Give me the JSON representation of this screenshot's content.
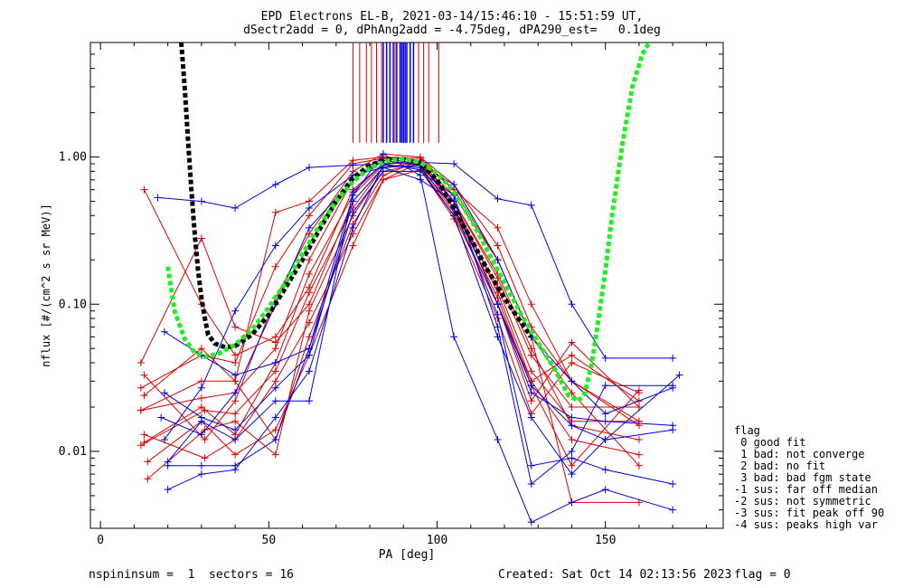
{
  "title": {
    "line1": "EPD Electrons EL-B, 2021-03-14/15:46:10 - 15:51:59 UT,",
    "line2": "dSectr2add = 0, dPhAng2add = -4.75deg, dPA290_est=   0.1deg"
  },
  "footer": {
    "left": "nspininsum =  1  sectors = 16",
    "created": "Created: Sat Oct 14 02:13:56 2023",
    "flag": "flag = 0"
  },
  "legend": {
    "title": "flag",
    "items": [
      " 0 good fit",
      " 1 bad: not converge",
      " 2 bad: no fit",
      " 3 bad: bad fgm state",
      "-1 sus: far off median",
      "-2 sus: not symmetric",
      "-3 sus: fit peak off 90",
      "-4 sus: peaks high var"
    ]
  },
  "colors": {
    "red": "#e00000",
    "blue": "#0000e0",
    "black": "#000000",
    "green": "#22ee22"
  },
  "chart_data": {
    "type": "line",
    "xlabel": "PA [deg]",
    "ylabel": "nflux [#/(cm^2 s sr MeV)]",
    "xlim": [
      -3,
      185
    ],
    "ylim": [
      0.003,
      6.0
    ],
    "yscale": "log",
    "xticks": [
      0,
      50,
      100,
      150
    ],
    "xtick_labels": [
      "0",
      "50",
      "100",
      "150"
    ],
    "yticks": [
      0.01,
      0.1,
      1.0
    ],
    "ytick_labels": [
      "0.01",
      "0.10",
      "1.00"
    ],
    "vertical_markers": {
      "red": [
        75,
        77,
        79,
        80.5,
        82,
        83.5,
        85,
        86,
        87.5,
        94.5,
        96,
        97.5,
        100.5
      ],
      "blue": [
        84,
        85,
        86,
        87,
        88,
        89,
        89.5,
        90,
        90.5,
        91,
        92,
        93
      ],
      "ymin": 1.25
    },
    "series": [
      {
        "color": "red",
        "x": [
          12,
          31,
          40,
          52,
          62,
          75,
          84,
          95,
          105,
          118,
          128,
          140,
          160
        ],
        "y": [
          0.011,
          0.019,
          0.018,
          0.035,
          0.12,
          0.45,
          0.85,
          0.92,
          0.45,
          0.13,
          0.035,
          0.016,
          0.016
        ]
      },
      {
        "color": "red",
        "x": [
          13,
          30,
          40,
          52,
          62,
          75,
          84,
          95,
          105,
          118,
          128,
          140,
          160
        ],
        "y": [
          0.6,
          0.1,
          0.045,
          0.06,
          0.13,
          0.6,
          0.9,
          0.95,
          0.5,
          0.12,
          0.03,
          0.012,
          0.0095
        ]
      },
      {
        "color": "red",
        "x": [
          12,
          30,
          40,
          52,
          62,
          75,
          84,
          95,
          105,
          118,
          128,
          140,
          160
        ],
        "y": [
          0.04,
          0.28,
          0.07,
          0.055,
          0.1,
          0.5,
          0.85,
          0.88,
          0.42,
          0.1,
          0.03,
          0.045,
          0.022
        ]
      },
      {
        "color": "red",
        "x": [
          13,
          30,
          40,
          52,
          62,
          75,
          84,
          95,
          105,
          118,
          128,
          140,
          160
        ],
        "y": [
          0.024,
          0.05,
          0.03,
          0.012,
          0.06,
          0.35,
          0.75,
          0.95,
          0.5,
          0.15,
          0.045,
          0.02,
          0.02
        ]
      },
      {
        "color": "red",
        "x": [
          14,
          31,
          40,
          52,
          62,
          75,
          84,
          95,
          105,
          118,
          128,
          140,
          160
        ],
        "y": [
          0.0065,
          0.014,
          0.016,
          0.0095,
          0.09,
          0.4,
          0.8,
          0.9,
          0.55,
          0.2,
          0.06,
          0.0045,
          0.0045
        ]
      },
      {
        "color": "red",
        "x": [
          12,
          30,
          40,
          52,
          62,
          75,
          84,
          95,
          105,
          118,
          128,
          140,
          160
        ],
        "y": [
          0.019,
          0.023,
          0.025,
          0.05,
          0.2,
          0.7,
          1.0,
          0.98,
          0.6,
          0.2,
          0.06,
          0.025,
          0.008
        ]
      },
      {
        "color": "red",
        "x": [
          13,
          31,
          40,
          52,
          62,
          75,
          84,
          95,
          105,
          118,
          128,
          140,
          160
        ],
        "y": [
          0.033,
          0.012,
          0.022,
          0.11,
          0.3,
          0.8,
          1.05,
          1.0,
          0.65,
          0.25,
          0.07,
          0.03,
          0.015
        ]
      },
      {
        "color": "red",
        "x": [
          14,
          30,
          40,
          52,
          62,
          75,
          84,
          95,
          105,
          118,
          128,
          140,
          160
        ],
        "y": [
          0.0085,
          0.016,
          0.0095,
          0.014,
          0.045,
          0.25,
          0.7,
          0.92,
          0.45,
          0.11,
          0.028,
          0.008,
          0.026
        ]
      },
      {
        "color": "red",
        "x": [
          12,
          30,
          40,
          52,
          62,
          75,
          84,
          95,
          105,
          118,
          128,
          140,
          160
        ],
        "y": [
          0.027,
          0.045,
          0.04,
          0.18,
          0.4,
          0.9,
          0.98,
          0.9,
          0.5,
          0.16,
          0.05,
          0.015,
          0.012
        ]
      },
      {
        "color": "red",
        "x": [
          13,
          30,
          40,
          52,
          62,
          75,
          84,
          95,
          105,
          118,
          128,
          140,
          160
        ],
        "y": [
          0.0115,
          0.02,
          0.013,
          0.04,
          0.16,
          0.55,
          0.88,
          0.85,
          0.4,
          0.1,
          0.022,
          0.055,
          0.02
        ]
      },
      {
        "color": "red",
        "x": [
          12,
          30,
          40,
          52,
          62,
          75,
          84,
          95,
          105,
          118,
          128,
          140,
          160
        ],
        "y": [
          0.019,
          0.03,
          0.03,
          0.42,
          0.5,
          0.95,
          1.0,
          0.95,
          0.6,
          0.33,
          0.1,
          0.03,
          0.016
        ]
      },
      {
        "color": "red",
        "x": [
          13,
          31,
          40,
          52,
          62,
          75,
          84,
          95,
          105,
          118,
          128,
          140,
          160
        ],
        "y": [
          0.013,
          0.009,
          0.012,
          0.03,
          0.075,
          0.3,
          0.7,
          0.82,
          0.38,
          0.08,
          0.018,
          0.04,
          0.025
        ]
      },
      {
        "color": "blue",
        "x": [
          17,
          30,
          40,
          52,
          62,
          75,
          84,
          95,
          105,
          118,
          128,
          140,
          150,
          170
        ],
        "y": [
          0.53,
          0.5,
          0.45,
          0.65,
          0.85,
          0.88,
          0.9,
          0.92,
          0.9,
          0.52,
          0.47,
          0.1,
          0.043,
          0.043
        ]
      },
      {
        "color": "blue",
        "x": [
          19,
          30,
          40,
          52,
          62,
          75,
          84,
          95,
          105,
          118,
          128,
          140,
          150,
          170
        ],
        "y": [
          0.065,
          0.045,
          0.033,
          0.04,
          0.05,
          0.42,
          0.8,
          0.8,
          0.55,
          0.07,
          0.006,
          0.01,
          0.028,
          0.028
        ]
      },
      {
        "color": "blue",
        "x": [
          19,
          30,
          40,
          52,
          62,
          75,
          84,
          95,
          105,
          118,
          128,
          140,
          150,
          170
        ],
        "y": [
          0.025,
          0.017,
          0.014,
          0.027,
          0.045,
          0.5,
          0.85,
          0.7,
          0.5,
          0.1,
          0.025,
          0.017,
          0.016,
          0.015
        ]
      },
      {
        "color": "blue",
        "x": [
          20,
          30,
          40,
          52,
          62,
          75,
          84,
          95,
          105,
          118,
          128,
          140,
          150,
          170
        ],
        "y": [
          0.0085,
          0.016,
          0.012,
          0.022,
          0.022,
          0.58,
          0.9,
          0.82,
          0.4,
          0.06,
          0.017,
          0.007,
          0.012,
          0.014
        ]
      },
      {
        "color": "blue",
        "x": [
          20,
          30,
          40,
          52,
          62,
          75,
          84,
          95,
          105,
          118,
          128,
          140,
          150,
          170
        ],
        "y": [
          0.0055,
          0.007,
          0.0075,
          0.017,
          0.035,
          0.33,
          0.88,
          0.85,
          0.45,
          0.085,
          0.008,
          0.009,
          0.0075,
          0.006
        ]
      },
      {
        "color": "blue",
        "x": [
          20,
          30,
          40,
          52,
          62,
          75,
          84,
          95,
          105,
          118,
          128,
          140,
          150,
          170
        ],
        "y": [
          0.008,
          0.008,
          0.008,
          0.012,
          0.05,
          0.55,
          1.05,
          0.75,
          0.06,
          0.012,
          0.0033,
          0.0045,
          0.0055,
          0.004
        ]
      },
      {
        "color": "blue",
        "x": [
          18,
          30,
          40,
          52,
          62,
          75,
          84,
          95,
          105,
          118,
          128,
          140,
          150,
          172
        ],
        "y": [
          0.017,
          0.013,
          0.025,
          0.1,
          0.33,
          0.7,
          0.95,
          0.88,
          0.5,
          0.1,
          0.028,
          0.015,
          0.012,
          0.033
        ]
      },
      {
        "color": "blue",
        "x": [
          19,
          30,
          40,
          52,
          62,
          75,
          84,
          95,
          105,
          118,
          128,
          140,
          150,
          170
        ],
        "y": [
          0.012,
          0.027,
          0.09,
          0.25,
          0.45,
          0.75,
          0.85,
          0.88,
          0.65,
          0.2,
          0.06,
          0.03,
          0.018,
          0.027
        ]
      }
    ],
    "median_curve": {
      "color": "black",
      "style": "dashed",
      "x": [
        24,
        25,
        26,
        27,
        28,
        29,
        30,
        31,
        32,
        34,
        37,
        40,
        45,
        50,
        55,
        60,
        65,
        70,
        75,
        80,
        85,
        90,
        95,
        100,
        105,
        110,
        115,
        120,
        125,
        128
      ],
      "y": [
        6.0,
        3.0,
        1.3,
        0.6,
        0.3,
        0.17,
        0.11,
        0.08,
        0.062,
        0.054,
        0.051,
        0.052,
        0.062,
        0.085,
        0.13,
        0.2,
        0.32,
        0.5,
        0.72,
        0.88,
        0.96,
        0.97,
        0.9,
        0.7,
        0.45,
        0.28,
        0.17,
        0.11,
        0.075,
        0.06
      ]
    },
    "fit_curve": {
      "color": "green",
      "style": "dashed",
      "x": [
        20,
        22,
        25,
        28,
        31,
        35,
        40,
        45,
        50,
        55,
        60,
        65,
        70,
        75,
        80,
        85,
        90,
        95,
        100,
        105,
        110,
        115,
        120,
        125,
        130,
        135,
        139,
        142,
        144,
        146,
        148,
        150,
        152,
        155,
        158,
        161,
        163
      ],
      "y": [
        0.18,
        0.09,
        0.058,
        0.047,
        0.044,
        0.046,
        0.053,
        0.067,
        0.095,
        0.14,
        0.22,
        0.34,
        0.5,
        0.68,
        0.84,
        0.94,
        0.97,
        0.92,
        0.78,
        0.58,
        0.38,
        0.23,
        0.14,
        0.085,
        0.055,
        0.036,
        0.024,
        0.022,
        0.025,
        0.04,
        0.08,
        0.17,
        0.4,
        1.2,
        3.0,
        5.0,
        6.0
      ]
    }
  }
}
